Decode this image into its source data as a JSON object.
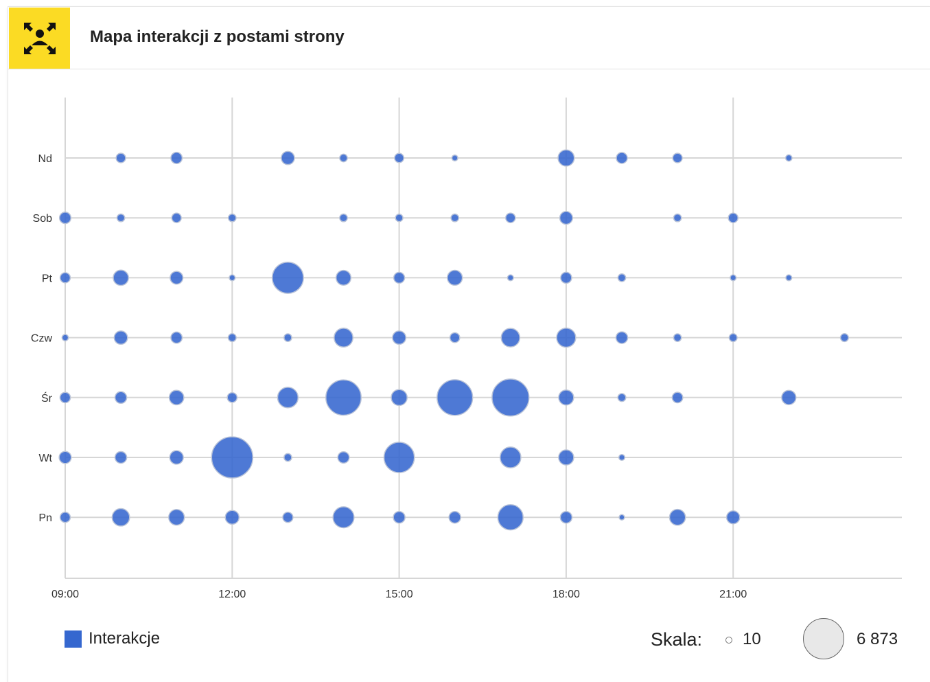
{
  "header": {
    "title": "Mapa interakcji z postami strony",
    "icon": "people-expand-icon",
    "icon_bg": "#fbdb24"
  },
  "legend": {
    "label": "Interakcje",
    "color": "#3567cf"
  },
  "scale": {
    "label": "Skala:",
    "min_label": "10",
    "max_label": "6 873"
  },
  "chart_data": {
    "type": "scatter",
    "subtype": "bubble",
    "title": "Mapa interakcji z postami strony",
    "xlabel": "",
    "ylabel": "",
    "x_ticks": [
      "09:00",
      "12:00",
      "15:00",
      "18:00",
      "21:00"
    ],
    "xlim": [
      9,
      24
    ],
    "y_categories": [
      "Pn",
      "Wt",
      "Śr",
      "Czw",
      "Pt",
      "Sob",
      "Nd"
    ],
    "size_range": [
      10,
      6873
    ],
    "bubble_color": "#3567cf",
    "grid": true,
    "legend_position": "bottom-left",
    "series": [
      {
        "name": "Interakcje",
        "points": [
          {
            "day": "Nd",
            "hour": 10,
            "value": 180
          },
          {
            "day": "Nd",
            "hour": 11,
            "value": 300
          },
          {
            "day": "Nd",
            "hour": 13,
            "value": 460
          },
          {
            "day": "Nd",
            "hour": 14,
            "value": 90
          },
          {
            "day": "Nd",
            "hour": 15,
            "value": 160
          },
          {
            "day": "Nd",
            "hour": 16,
            "value": 30
          },
          {
            "day": "Nd",
            "hour": 18,
            "value": 800
          },
          {
            "day": "Nd",
            "hour": 19,
            "value": 280
          },
          {
            "day": "Nd",
            "hour": 20,
            "value": 180
          },
          {
            "day": "Nd",
            "hour": 22,
            "value": 40
          },
          {
            "day": "Sob",
            "hour": 9,
            "value": 310
          },
          {
            "day": "Sob",
            "hour": 10,
            "value": 90
          },
          {
            "day": "Sob",
            "hour": 11,
            "value": 180
          },
          {
            "day": "Sob",
            "hour": 12,
            "value": 90
          },
          {
            "day": "Sob",
            "hour": 14,
            "value": 90
          },
          {
            "day": "Sob",
            "hour": 15,
            "value": 80
          },
          {
            "day": "Sob",
            "hour": 16,
            "value": 90
          },
          {
            "day": "Sob",
            "hour": 17,
            "value": 190
          },
          {
            "day": "Sob",
            "hour": 18,
            "value": 420
          },
          {
            "day": "Sob",
            "hour": 20,
            "value": 90
          },
          {
            "day": "Sob",
            "hour": 21,
            "value": 190
          },
          {
            "day": "Pt",
            "hour": 9,
            "value": 220
          },
          {
            "day": "Pt",
            "hour": 10,
            "value": 670
          },
          {
            "day": "Pt",
            "hour": 11,
            "value": 420
          },
          {
            "day": "Pt",
            "hour": 12,
            "value": 30
          },
          {
            "day": "Pt",
            "hour": 13,
            "value": 3700
          },
          {
            "day": "Pt",
            "hour": 14,
            "value": 630
          },
          {
            "day": "Pt",
            "hour": 15,
            "value": 270
          },
          {
            "day": "Pt",
            "hour": 16,
            "value": 650
          },
          {
            "day": "Pt",
            "hour": 17,
            "value": 30
          },
          {
            "day": "Pt",
            "hour": 18,
            "value": 280
          },
          {
            "day": "Pt",
            "hour": 19,
            "value": 90
          },
          {
            "day": "Pt",
            "hour": 21,
            "value": 30
          },
          {
            "day": "Pt",
            "hour": 22,
            "value": 30
          },
          {
            "day": "Czw",
            "hour": 9,
            "value": 40
          },
          {
            "day": "Czw",
            "hour": 10,
            "value": 480
          },
          {
            "day": "Czw",
            "hour": 11,
            "value": 300
          },
          {
            "day": "Czw",
            "hour": 12,
            "value": 100
          },
          {
            "day": "Czw",
            "hour": 13,
            "value": 90
          },
          {
            "day": "Czw",
            "hour": 14,
            "value": 1150
          },
          {
            "day": "Czw",
            "hour": 15,
            "value": 480
          },
          {
            "day": "Czw",
            "hour": 16,
            "value": 200
          },
          {
            "day": "Czw",
            "hour": 17,
            "value": 1100
          },
          {
            "day": "Czw",
            "hour": 18,
            "value": 1180
          },
          {
            "day": "Czw",
            "hour": 19,
            "value": 330
          },
          {
            "day": "Czw",
            "hour": 20,
            "value": 90
          },
          {
            "day": "Czw",
            "hour": 21,
            "value": 100
          },
          {
            "day": "Czw",
            "hour": 23,
            "value": 100
          },
          {
            "day": "Śr",
            "hour": 9,
            "value": 240
          },
          {
            "day": "Śr",
            "hour": 10,
            "value": 330
          },
          {
            "day": "Śr",
            "hour": 11,
            "value": 600
          },
          {
            "day": "Śr",
            "hour": 12,
            "value": 200
          },
          {
            "day": "Śr",
            "hour": 13,
            "value": 1400
          },
          {
            "day": "Śr",
            "hour": 14,
            "value": 4900
          },
          {
            "day": "Śr",
            "hour": 15,
            "value": 750
          },
          {
            "day": "Śr",
            "hour": 16,
            "value": 5000
          },
          {
            "day": "Śr",
            "hour": 17,
            "value": 5400
          },
          {
            "day": "Śr",
            "hour": 18,
            "value": 650
          },
          {
            "day": "Śr",
            "hour": 19,
            "value": 100
          },
          {
            "day": "Śr",
            "hour": 20,
            "value": 250
          },
          {
            "day": "Śr",
            "hour": 22,
            "value": 570
          },
          {
            "day": "Wt",
            "hour": 9,
            "value": 360
          },
          {
            "day": "Wt",
            "hour": 10,
            "value": 330
          },
          {
            "day": "Wt",
            "hour": 11,
            "value": 500
          },
          {
            "day": "Wt",
            "hour": 12,
            "value": 6873
          },
          {
            "day": "Wt",
            "hour": 13,
            "value": 90
          },
          {
            "day": "Wt",
            "hour": 14,
            "value": 310
          },
          {
            "day": "Wt",
            "hour": 15,
            "value": 3500
          },
          {
            "day": "Wt",
            "hour": 17,
            "value": 1460
          },
          {
            "day": "Wt",
            "hour": 18,
            "value": 660
          },
          {
            "day": "Wt",
            "hour": 19,
            "value": 30
          },
          {
            "day": "Pn",
            "hour": 9,
            "value": 220
          },
          {
            "day": "Pn",
            "hour": 10,
            "value": 950
          },
          {
            "day": "Pn",
            "hour": 11,
            "value": 720
          },
          {
            "day": "Pn",
            "hour": 12,
            "value": 520
          },
          {
            "day": "Pn",
            "hour": 13,
            "value": 220
          },
          {
            "day": "Pn",
            "hour": 14,
            "value": 1500
          },
          {
            "day": "Pn",
            "hour": 15,
            "value": 330
          },
          {
            "day": "Pn",
            "hour": 16,
            "value": 330
          },
          {
            "day": "Pn",
            "hour": 17,
            "value": 2300
          },
          {
            "day": "Pn",
            "hour": 18,
            "value": 330
          },
          {
            "day": "Pn",
            "hour": 19,
            "value": 20
          },
          {
            "day": "Pn",
            "hour": 20,
            "value": 750
          },
          {
            "day": "Pn",
            "hour": 21,
            "value": 450
          }
        ]
      }
    ]
  }
}
